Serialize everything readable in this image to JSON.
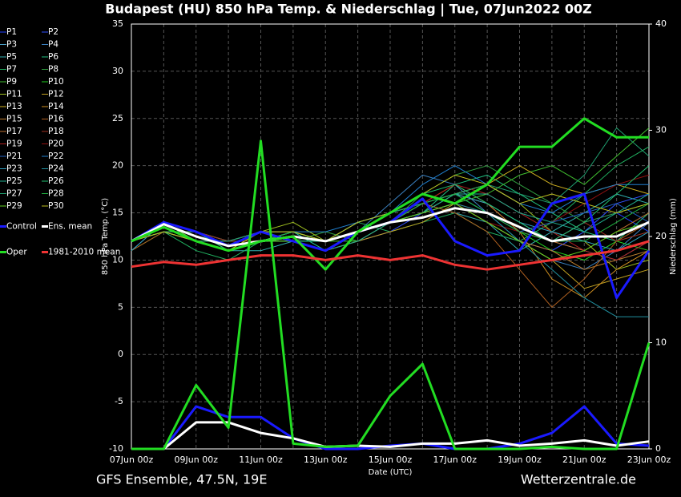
{
  "chart_data": {
    "type": "line",
    "title": "Budapest  (HU)  850 hPa Temp. & Niederschlag | Tue, 07Jun2022 00Z",
    "y_label": "850 hPa Temp. (°C)",
    "y2_label": "Niederschlag (mm)",
    "x_label": "Date (UTC)",
    "footer_left": "GFS Ensemble, 47.5N, 19E",
    "footer_right": "Wetterzentrale.de",
    "x": [
      "07Jun 00z",
      null,
      "09Jun 00z",
      null,
      "11Jun 00z",
      null,
      "13Jun 00z",
      null,
      "15Jun 00z",
      null,
      "17Jun 00z",
      null,
      "19Jun 00z",
      null,
      "21Jun 00z",
      null,
      "23Jun 00z"
    ],
    "ylim": [
      -10,
      35
    ],
    "yticks": [
      -10,
      -5,
      0,
      5,
      10,
      15,
      20,
      25,
      30,
      35
    ],
    "y2lim": [
      0,
      40
    ],
    "y2ticks": [
      0,
      10,
      20,
      30,
      40
    ],
    "grid": true,
    "series": [
      {
        "name": "P1",
        "color": "#2040ff",
        "values": [
          12,
          14,
          12,
          11,
          12,
          13,
          12,
          13,
          14,
          15,
          17,
          15,
          13,
          12,
          14,
          15,
          13
        ]
      },
      {
        "name": "P2",
        "color": "#3050ff",
        "values": [
          12,
          13,
          13,
          12,
          13,
          12,
          11,
          12,
          13,
          15,
          16,
          14,
          12,
          11,
          13,
          16,
          17
        ]
      },
      {
        "name": "P3",
        "color": "#4aa0c8",
        "values": [
          11,
          14,
          12,
          11,
          12,
          12,
          12,
          14,
          15,
          16,
          17,
          16,
          14,
          12,
          11,
          10,
          12
        ]
      },
      {
        "name": "P4",
        "color": "#3a80c0",
        "values": [
          12,
          14,
          13,
          12,
          13,
          12,
          12,
          13,
          16,
          19,
          18,
          15,
          12,
          10,
          9,
          11,
          14
        ]
      },
      {
        "name": "P5",
        "color": "#30b0b0",
        "values": [
          12,
          13,
          12,
          11,
          11,
          12,
          12,
          13,
          14,
          16,
          15,
          14,
          11,
          13,
          15,
          17,
          16
        ]
      },
      {
        "name": "P6",
        "color": "#20c080",
        "values": [
          12,
          14,
          12,
          12,
          13,
          13,
          11,
          12,
          14,
          15,
          18,
          19,
          17,
          15,
          13,
          12,
          15
        ]
      },
      {
        "name": "P7",
        "color": "#20b060",
        "values": [
          12,
          13,
          11,
          10,
          12,
          13,
          12,
          14,
          13,
          14,
          15,
          13,
          12,
          14,
          17,
          20,
          22
        ]
      },
      {
        "name": "P8",
        "color": "#30a040",
        "values": [
          11,
          13,
          12,
          11,
          12,
          12,
          13,
          12,
          14,
          17,
          19,
          20,
          18,
          16,
          14,
          15,
          16
        ]
      },
      {
        "name": "P9",
        "color": "#40c030",
        "values": [
          12,
          14,
          12,
          11,
          12,
          13,
          12,
          12,
          14,
          15,
          16,
          17,
          19,
          20,
          18,
          21,
          24
        ]
      },
      {
        "name": "P10",
        "color": "#20d020",
        "values": [
          12,
          14,
          13,
          12,
          12,
          13,
          12,
          13,
          15,
          16,
          17,
          15,
          13,
          11,
          10,
          12,
          11
        ]
      },
      {
        "name": "P11",
        "color": "#a0c020",
        "values": [
          12,
          13,
          12,
          11,
          13,
          14,
          12,
          13,
          14,
          15,
          17,
          18,
          16,
          13,
          12,
          9,
          10
        ]
      },
      {
        "name": "P12",
        "color": "#c0a020",
        "values": [
          12,
          14,
          13,
          11,
          12,
          12,
          11,
          12,
          13,
          14,
          16,
          14,
          12,
          10,
          7,
          8,
          9
        ]
      },
      {
        "name": "P13",
        "color": "#d0b020",
        "values": [
          12,
          13,
          12,
          12,
          13,
          13,
          12,
          13,
          15,
          16,
          17,
          18,
          20,
          18,
          17,
          18,
          17
        ]
      },
      {
        "name": "P14",
        "color": "#d09020",
        "values": [
          12,
          14,
          12,
          11,
          12,
          12,
          11,
          13,
          14,
          16,
          18,
          16,
          13,
          8,
          6,
          9,
          11
        ]
      },
      {
        "name": "P15",
        "color": "#c08030",
        "values": [
          12,
          13,
          12,
          11,
          12,
          13,
          12,
          13,
          14,
          15,
          16,
          14,
          12,
          11,
          9,
          10,
          11
        ]
      },
      {
        "name": "P16",
        "color": "#b06020",
        "values": [
          11,
          13,
          12,
          12,
          13,
          12,
          12,
          14,
          15,
          16,
          15,
          13,
          9,
          5,
          8,
          12,
          14
        ]
      },
      {
        "name": "P17",
        "color": "#c07030",
        "values": [
          12,
          14,
          12,
          11,
          12,
          13,
          12,
          13,
          14,
          16,
          17,
          16,
          13,
          12,
          11,
          13,
          15
        ]
      },
      {
        "name": "P18",
        "color": "#a03020",
        "values": [
          12,
          13,
          13,
          12,
          12,
          12,
          11,
          12,
          14,
          15,
          16,
          15,
          13,
          12,
          14,
          12,
          13
        ]
      },
      {
        "name": "P19",
        "color": "#b02020",
        "values": [
          12,
          14,
          12,
          11,
          12,
          13,
          12,
          13,
          14,
          16,
          18,
          17,
          15,
          13,
          11,
          10,
          12
        ]
      },
      {
        "name": "P20",
        "color": "#901010",
        "values": [
          12,
          13,
          12,
          12,
          13,
          13,
          12,
          13,
          15,
          17,
          16,
          14,
          13,
          14,
          16,
          18,
          19
        ]
      },
      {
        "name": "P21",
        "color": "#2060c0",
        "values": [
          12,
          14,
          13,
          11,
          12,
          12,
          12,
          14,
          15,
          16,
          17,
          15,
          13,
          14,
          15,
          16,
          14
        ]
      },
      {
        "name": "P22",
        "color": "#2080d0",
        "values": [
          12,
          13,
          12,
          11,
          12,
          13,
          13,
          14,
          15,
          18,
          20,
          18,
          16,
          15,
          17,
          18,
          18
        ]
      },
      {
        "name": "P23",
        "color": "#30a0c0",
        "values": [
          11,
          14,
          12,
          11,
          12,
          13,
          12,
          13,
          14,
          16,
          17,
          16,
          14,
          13,
          12,
          11,
          13
        ]
      },
      {
        "name": "P24",
        "color": "#2090a0",
        "values": [
          12,
          13,
          12,
          12,
          13,
          12,
          12,
          13,
          14,
          15,
          16,
          15,
          12,
          9,
          6,
          4,
          4
        ]
      },
      {
        "name": "P25",
        "color": "#20b090",
        "values": [
          12,
          14,
          12,
          11,
          12,
          13,
          11,
          12,
          14,
          15,
          17,
          17,
          15,
          14,
          13,
          15,
          17
        ]
      },
      {
        "name": "P26",
        "color": "#20c070",
        "values": [
          12,
          13,
          13,
          11,
          12,
          12,
          12,
          13,
          15,
          17,
          18,
          16,
          14,
          12,
          14,
          17,
          20
        ]
      },
      {
        "name": "P27",
        "color": "#20a070",
        "values": [
          12,
          14,
          12,
          12,
          13,
          13,
          12,
          14,
          15,
          16,
          17,
          18,
          17,
          16,
          19,
          24,
          21
        ]
      },
      {
        "name": "P28",
        "color": "#20b040",
        "values": [
          12,
          13,
          12,
          11,
          12,
          13,
          12,
          13,
          14,
          16,
          17,
          15,
          13,
          12,
          12,
          14,
          16
        ]
      },
      {
        "name": "P29",
        "color": "#60d020",
        "values": [
          12,
          14,
          12,
          11,
          12,
          12,
          11,
          13,
          14,
          15,
          16,
          14,
          12,
          10,
          11,
          13,
          14
        ]
      },
      {
        "name": "P30",
        "color": "#c0c020",
        "values": [
          12,
          13,
          12,
          11,
          13,
          13,
          12,
          14,
          15,
          17,
          19,
          18,
          16,
          17,
          16,
          15,
          16
        ]
      },
      {
        "name": "Control",
        "color": "#1a1aff",
        "bold": true,
        "values": [
          12,
          14,
          13,
          11.5,
          13,
          12,
          11,
          13,
          14,
          16.5,
          12,
          10.5,
          11,
          16,
          17,
          6,
          11
        ]
      },
      {
        "name": "Ens. mean",
        "color": "#ffffff",
        "bold": true,
        "values": [
          12,
          13.8,
          12.5,
          11.5,
          12,
          12.5,
          12,
          13,
          14,
          14.5,
          15.5,
          15,
          13.5,
          12,
          12.5,
          12.5,
          14
        ]
      },
      {
        "name": "Oper",
        "color": "#22dd22",
        "bold": true,
        "values": [
          12,
          13.5,
          12,
          11,
          12,
          12.5,
          9,
          13,
          15,
          17,
          16,
          18,
          22,
          22,
          25,
          23,
          23
        ]
      },
      {
        "name": "1981-2010 mean",
        "color": "#ee3333",
        "bold": true,
        "values": [
          9.3,
          9.8,
          9.5,
          10,
          10.5,
          10.5,
          10,
          10.5,
          10,
          10.5,
          9.5,
          9,
          9.5,
          10,
          10.5,
          11,
          12
        ]
      },
      {
        "color": "#1a1aff",
        "bold": true,
        "axis": "y2",
        "values": [
          0,
          0,
          4,
          3,
          3,
          1,
          0,
          0,
          0.3,
          0.5,
          0,
          0,
          0.5,
          1.5,
          4,
          0.5,
          0.3
        ]
      },
      {
        "color": "#ffffff",
        "bold": true,
        "axis": "y2",
        "values": [
          0,
          0,
          2.5,
          2.5,
          1.5,
          1,
          0.2,
          0.3,
          0.2,
          0.5,
          0.5,
          0.8,
          0.3,
          0.5,
          0.8,
          0.3,
          0.7
        ]
      },
      {
        "color": "#22dd22",
        "bold": true,
        "axis": "y2",
        "values": [
          0,
          0,
          6,
          2,
          29,
          0.5,
          0.2,
          0.3,
          5,
          8,
          0,
          0,
          0,
          0.2,
          0,
          0,
          10
        ]
      }
    ]
  }
}
